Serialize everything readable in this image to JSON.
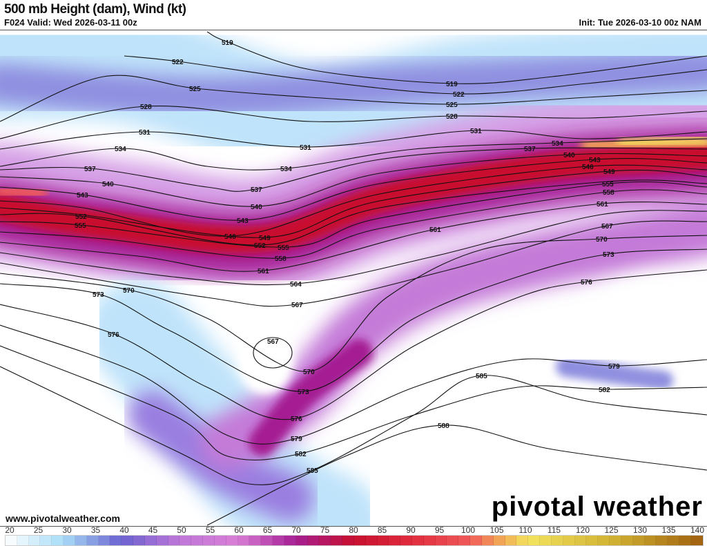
{
  "header": {
    "title": "500 mb Height (dam), Wind (kt)",
    "valid": "F024 Valid: Wed 2026-03-11 00z",
    "init": "Init: Tue 2026-03-10 00z NAM"
  },
  "footer": {
    "website": "www.pivotalweather.com",
    "logo": "pivotal weather"
  },
  "map": {
    "height_contours_dam": [
      519,
      522,
      525,
      528,
      531,
      534,
      537,
      540,
      543,
      546,
      549,
      552,
      555,
      558,
      561,
      564,
      567,
      570,
      573,
      576,
      579,
      582,
      585,
      588
    ]
  },
  "colorbar": {
    "units": "kt",
    "ticks": [
      "20",
      "25",
      "30",
      "35",
      "40",
      "45",
      "50",
      "55",
      "60",
      "65",
      "70",
      "75",
      "80",
      "85",
      "90",
      "95",
      "100",
      "105",
      "110",
      "115",
      "120",
      "125",
      "130",
      "135",
      "140"
    ],
    "colors": {
      "20": "#ffffff",
      "30": "#a8dcf8",
      "40": "#6a62d0",
      "50": "#c077d8",
      "60": "#d87ed6",
      "70": "#a51e93",
      "80": "#c8102e",
      "90": "#e02c3e",
      "100": "#ef5a5a",
      "105": "#f2a456",
      "110": "#f3e35e",
      "125": "#d0b032",
      "140": "#a0600f"
    }
  }
}
